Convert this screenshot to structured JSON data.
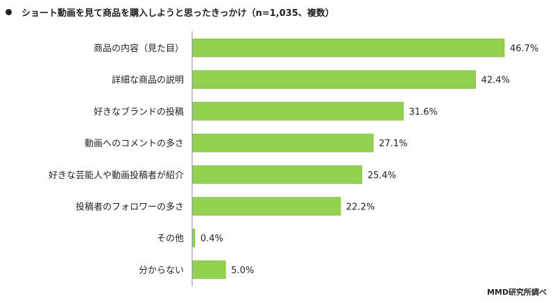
{
  "chart_data": {
    "type": "bar",
    "orientation": "horizontal",
    "title": "ショート動画を見て商品を購入しようと思ったきっかけ（n=1,035、複数）",
    "categories": [
      "商品の内容（見た目）",
      "詳細な商品の説明",
      "好きなブランドの投稿",
      "動画へのコメントの多さ",
      "好きな芸能人や動画投稿者が紹介",
      "投稿者のフォロワーの多さ",
      "その他",
      "分からない"
    ],
    "values": [
      46.7,
      42.4,
      31.6,
      27.1,
      25.4,
      22.2,
      0.4,
      5.0
    ],
    "value_labels": [
      "46.7%",
      "42.4%",
      "31.6%",
      "27.1%",
      "25.4%",
      "22.2%",
      "0.4%",
      "5.0%"
    ],
    "bar_color": "#92d050",
    "bar_border_color": "#7ab640",
    "axis_color": "#888888",
    "xlim": [
      0,
      46.7
    ],
    "grid": false,
    "legend": "none"
  },
  "source": "MMD研究所調べ"
}
